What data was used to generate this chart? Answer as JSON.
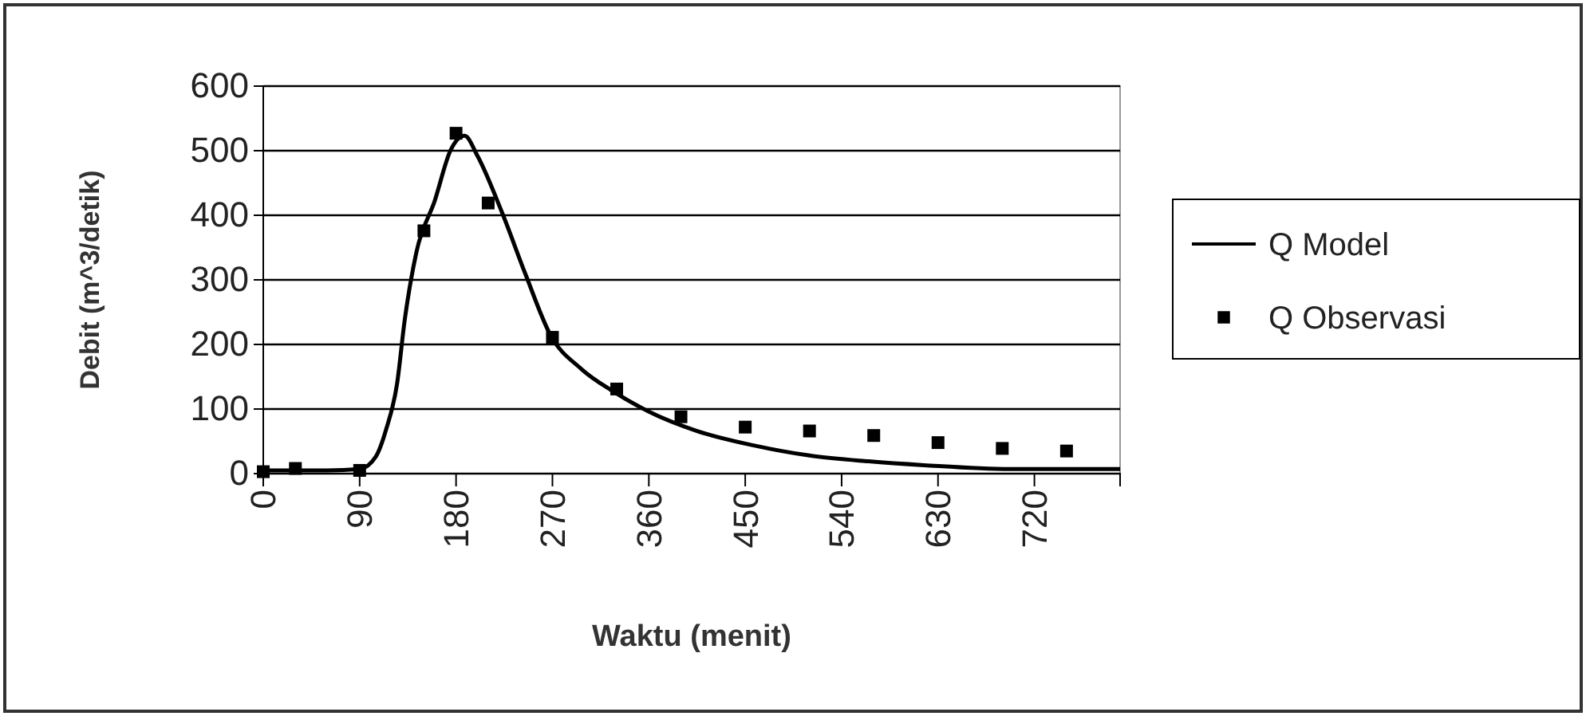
{
  "chart_data": {
    "type": "line",
    "xlabel": "Waktu (menit)",
    "ylabel": "Debit (m^3/detik)",
    "xlim": [
      0,
      800
    ],
    "xticks": [
      0,
      90,
      180,
      270,
      360,
      450,
      540,
      630,
      720
    ],
    "ylim": [
      0,
      600
    ],
    "yticks": [
      0,
      100,
      200,
      300,
      400,
      500,
      600
    ],
    "grid": "y",
    "legend": "right",
    "series": [
      {
        "name": "Q Model",
        "color": "#000000",
        "type": "line",
        "marker": "none",
        "line_style": "solid",
        "x": [
          0,
          60,
          90,
          105,
          115,
          125,
          132,
          143,
          160,
          175,
          188,
          200,
          223,
          245,
          268,
          297,
          327,
          360,
          405,
          457,
          510,
          565,
          617,
          697,
          800
        ],
        "values": [
          5,
          5,
          7,
          26,
          70,
          140,
          237,
          343,
          422,
          501,
          523,
          492,
          404,
          308,
          215,
          162,
          127,
          96,
          66,
          44,
          28,
          19,
          13,
          7,
          7
        ]
      },
      {
        "name": "Q Observasi",
        "color": "#000000",
        "type": "scatter",
        "marker": "square",
        "x": [
          0,
          30,
          90,
          150,
          180,
          210,
          270,
          330,
          390,
          450,
          510,
          570,
          630,
          690,
          750
        ],
        "values": [
          3,
          8,
          5,
          376,
          527,
          419,
          211,
          131,
          88,
          72,
          66,
          59,
          48,
          39,
          35
        ]
      }
    ]
  }
}
